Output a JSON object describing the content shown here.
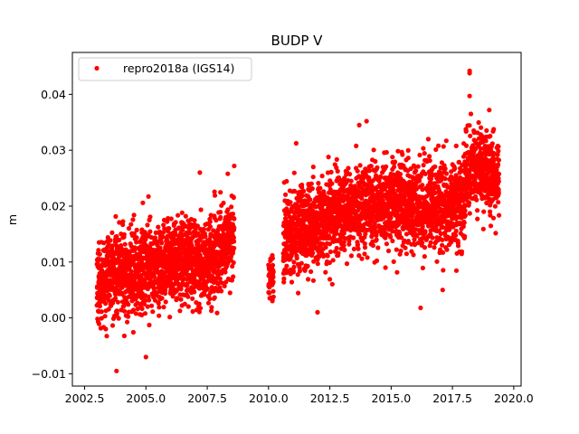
{
  "chart_data": {
    "type": "scatter",
    "title": "BUDP V",
    "xlabel": "",
    "ylabel": "m",
    "xlim": [
      2002.0,
      2020.3
    ],
    "ylim": [
      -0.0122,
      0.0475
    ],
    "x_ticks": [
      2002.5,
      2005.0,
      2007.5,
      2010.0,
      2012.5,
      2015.0,
      2017.5,
      2020.0
    ],
    "x_tick_labels": [
      "2002.5",
      "2005.0",
      "2007.5",
      "2010.0",
      "2012.5",
      "2015.0",
      "2017.5",
      "2020.0"
    ],
    "y_ticks": [
      -0.01,
      0.0,
      0.01,
      0.02,
      0.03,
      0.04
    ],
    "y_tick_labels": [
      "−0.01",
      "0.00",
      "0.01",
      "0.02",
      "0.03",
      "0.04"
    ],
    "grid": false,
    "legend_position": "top-left",
    "series": [
      {
        "name": "repro2018a (IGS14)",
        "color": "#ff0000",
        "marker": "circle",
        "segments": [
          {
            "x_start": 2003.0,
            "x_end": 2008.6,
            "trend": [
              [
                2003.0,
                0.007
              ],
              [
                2004.2,
                0.0075
              ],
              [
                2005.5,
                0.0095
              ],
              [
                2006.5,
                0.0105
              ],
              [
                2007.5,
                0.01
              ],
              [
                2008.6,
                0.014
              ]
            ],
            "spread": 0.0045
          },
          {
            "x_start": 2010.0,
            "x_end": 2010.2,
            "trend": [
              [
                2010.0,
                0.007
              ],
              [
                2010.2,
                0.008
              ]
            ],
            "spread": 0.002
          },
          {
            "x_start": 2010.6,
            "x_end": 2018.0,
            "trend": [
              [
                2010.6,
                0.015
              ],
              [
                2012.0,
                0.017
              ],
              [
                2013.5,
                0.02
              ],
              [
                2015.0,
                0.0205
              ],
              [
                2016.5,
                0.0195
              ],
              [
                2018.0,
                0.0205
              ]
            ],
            "spread": 0.0045
          },
          {
            "x_start": 2018.0,
            "x_end": 2019.4,
            "trend": [
              [
                2018.0,
                0.025
              ],
              [
                2018.5,
                0.027
              ],
              [
                2019.4,
                0.025
              ]
            ],
            "spread": 0.004
          }
        ],
        "extremes": [
          {
            "x": 2003.8,
            "y": -0.0095
          },
          {
            "x": 2005.0,
            "y": -0.007
          },
          {
            "x": 2018.2,
            "y": 0.0442
          },
          {
            "x": 2018.2,
            "y": 0.0438
          },
          {
            "x": 2018.2,
            "y": 0.0397
          },
          {
            "x": 2014.0,
            "y": 0.0352
          },
          {
            "x": 2013.7,
            "y": 0.0345
          },
          {
            "x": 2019.0,
            "y": 0.0372
          },
          {
            "x": 2008.6,
            "y": 0.0272
          },
          {
            "x": 2007.2,
            "y": 0.026
          },
          {
            "x": 2012.0,
            "y": 0.001
          },
          {
            "x": 2016.2,
            "y": 0.0018
          },
          {
            "x": 2017.1,
            "y": 0.005
          }
        ]
      }
    ]
  }
}
